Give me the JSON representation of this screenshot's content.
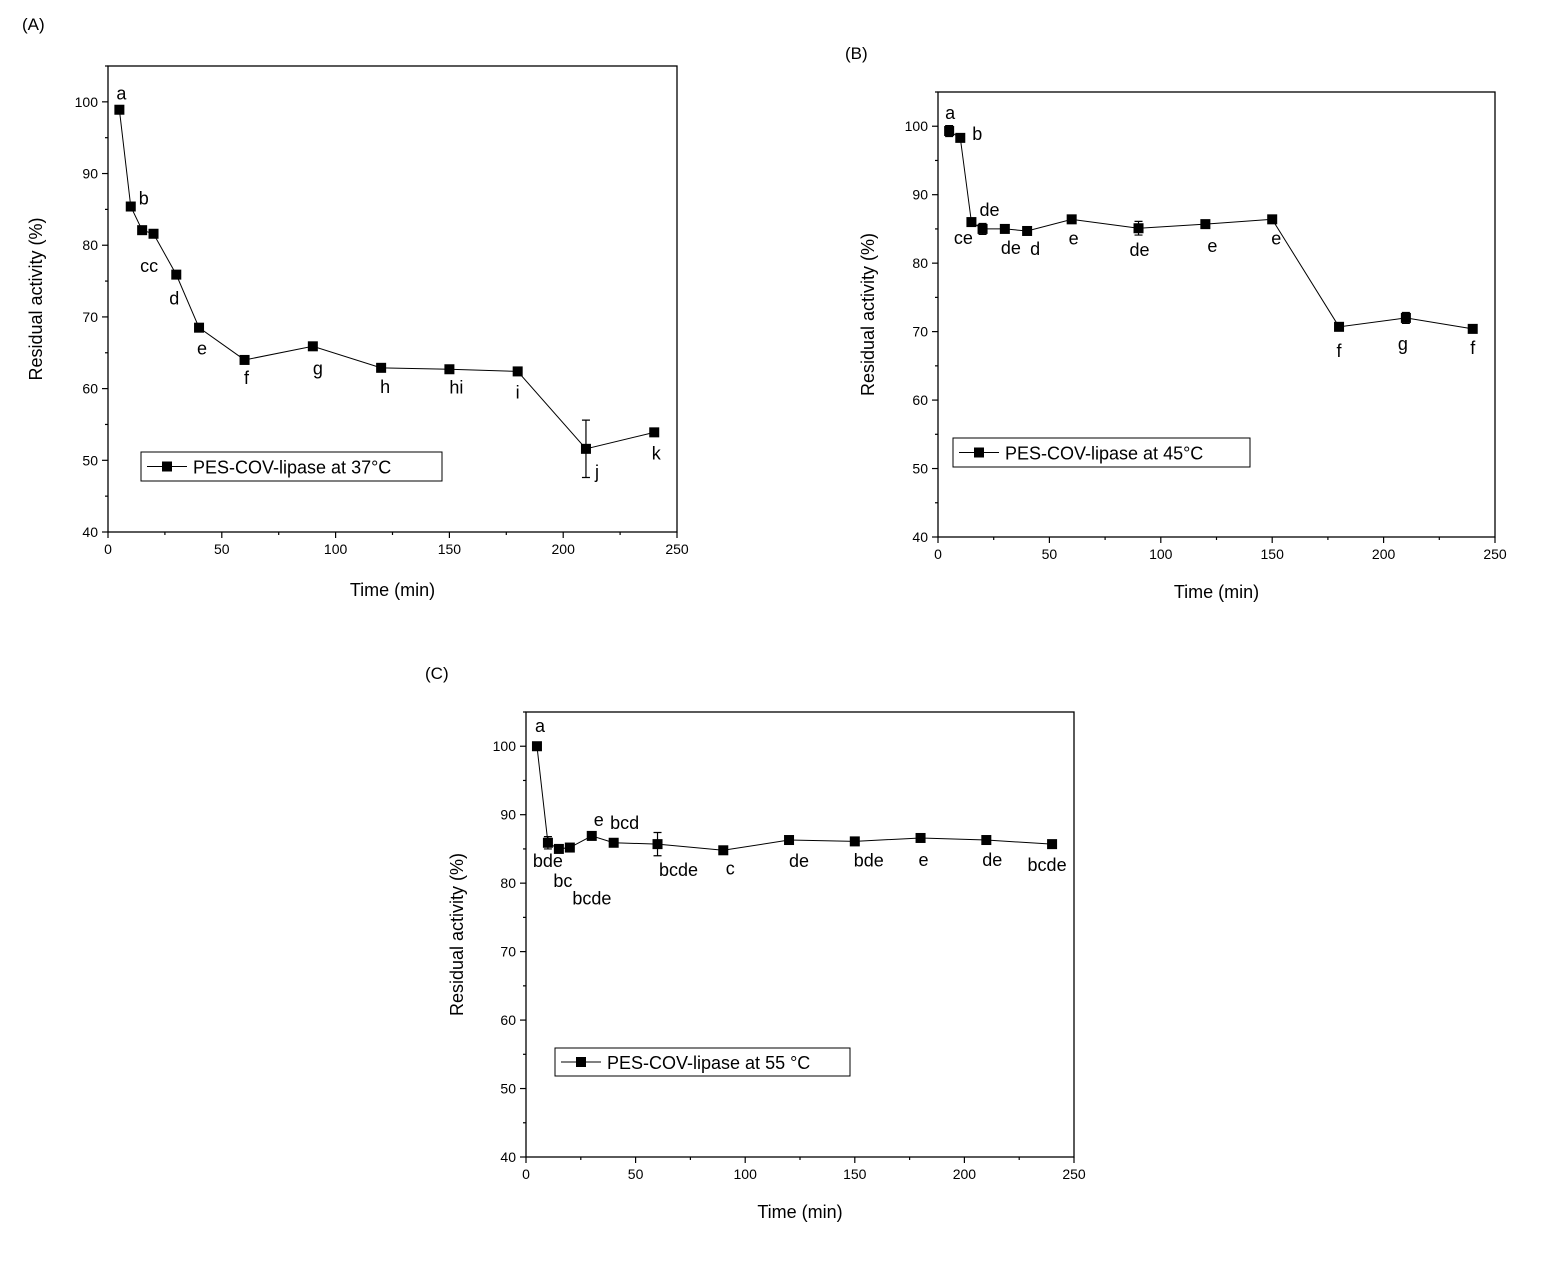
{
  "chart_data": [
    {
      "panel_label": "(A)",
      "type": "line",
      "xlabel": "Time (min)",
      "ylabel": "Residual activity (%)",
      "xlim": [
        0,
        250
      ],
      "ylim": [
        40,
        105
      ],
      "xticks": [
        0,
        50,
        100,
        150,
        200,
        250
      ],
      "yticks": [
        40,
        50,
        60,
        70,
        80,
        90,
        100
      ],
      "legend": {
        "text": "PES-COV-lipase at 37°C",
        "placement": "bottom-left"
      },
      "marker": "square",
      "color": "#000000",
      "series": [
        {
          "name": "PES-COV-lipase at 37°C",
          "x": [
            5,
            10,
            15,
            20,
            30,
            40,
            60,
            90,
            120,
            150,
            180,
            210,
            240
          ],
          "y": [
            98.9,
            85.4,
            82.1,
            81.6,
            75.9,
            68.5,
            64.0,
            65.9,
            62.9,
            62.7,
            62.4,
            51.6,
            53.9
          ],
          "error": [
            0.3,
            0.3,
            0.3,
            0.3,
            0.3,
            0.3,
            0.3,
            0.3,
            0.3,
            0.3,
            0.3,
            4.0,
            0.3
          ],
          "labels": [
            "a",
            "b",
            "cc",
            "",
            "d",
            "e",
            "f",
            "g",
            "h",
            "hi",
            "i",
            "j",
            "k"
          ]
        }
      ]
    },
    {
      "panel_label": "(B)",
      "type": "line",
      "xlabel": "Time (min)",
      "ylabel": "Residual activity (%)",
      "xlim": [
        0,
        250
      ],
      "ylim": [
        40,
        105
      ],
      "xticks": [
        0,
        50,
        100,
        150,
        200,
        250
      ],
      "yticks": [
        40,
        50,
        60,
        70,
        80,
        90,
        100
      ],
      "legend": {
        "text": "PES-COV-lipase at 45°C",
        "placement": "bottom-left"
      },
      "marker": "square",
      "color": "#000000",
      "series": [
        {
          "name": "PES-COV-lipase at 45°C",
          "x": [
            5,
            10,
            15,
            20,
            30,
            40,
            60,
            90,
            120,
            150,
            180,
            210,
            240
          ],
          "y": [
            99.3,
            98.3,
            86.0,
            85.0,
            85.0,
            84.7,
            86.4,
            85.1,
            85.7,
            86.4,
            70.7,
            72.0,
            70.4
          ],
          "error": [
            0.8,
            0.2,
            0.2,
            0.8,
            0.2,
            0.2,
            0.2,
            1.0,
            0.2,
            0.2,
            0.2,
            0.8,
            0.2
          ],
          "labels": [
            "a",
            "b",
            "ce",
            "de",
            "de",
            "d",
            "e",
            "de",
            "e",
            "e",
            "f",
            "g",
            "f"
          ]
        }
      ]
    },
    {
      "panel_label": "(C)",
      "type": "line",
      "xlabel": "Time (min)",
      "ylabel": "Residual activity (%)",
      "xlim": [
        0,
        250
      ],
      "ylim": [
        40,
        105
      ],
      "xticks": [
        0,
        50,
        100,
        150,
        200,
        250
      ],
      "yticks": [
        40,
        50,
        60,
        70,
        80,
        90,
        100
      ],
      "legend": {
        "text": "PES-COV-lipase at 55 °C",
        "placement": "bottom-left"
      },
      "marker": "square",
      "color": "#000000",
      "series": [
        {
          "name": "PES-COV-lipase at 55 °C",
          "x": [
            5,
            10,
            15,
            20,
            30,
            40,
            60,
            90,
            120,
            150,
            180,
            210,
            240
          ],
          "y": [
            100.0,
            85.9,
            85.0,
            85.2,
            86.9,
            85.9,
            85.7,
            84.8,
            86.3,
            86.1,
            86.6,
            86.3,
            85.7
          ],
          "error": [
            0.2,
            0.9,
            0.2,
            0.2,
            0.2,
            0.2,
            1.7,
            0.2,
            0.2,
            0.2,
            0.2,
            0.2,
            0.2
          ],
          "labels": [
            "a",
            "bde",
            "bc",
            "bcde",
            "e",
            "bcd",
            "bcde",
            "c",
            "de",
            "bde",
            "e",
            "de",
            "bcde"
          ]
        }
      ]
    }
  ]
}
